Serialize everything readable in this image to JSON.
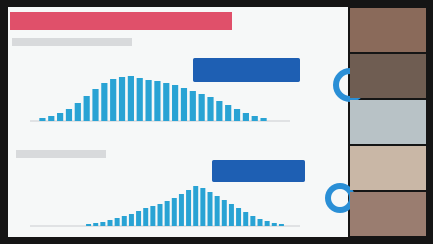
{
  "charts": [
    {
      "type": "bar",
      "color": "#29a3d4",
      "values": [
        3,
        5,
        8,
        12,
        18,
        25,
        32,
        38,
        42,
        44,
        45,
        43,
        41,
        40,
        38,
        36,
        33,
        30,
        27,
        24,
        20,
        16,
        12,
        8,
        5,
        3
      ]
    },
    {
      "type": "bar",
      "color": "#29a3d4",
      "values": [
        2,
        3,
        4,
        6,
        8,
        10,
        12,
        15,
        18,
        20,
        22,
        25,
        28,
        32,
        36,
        40,
        38,
        34,
        30,
        26,
        22,
        18,
        14,
        10,
        7,
        5,
        3,
        2
      ]
    }
  ]
}
